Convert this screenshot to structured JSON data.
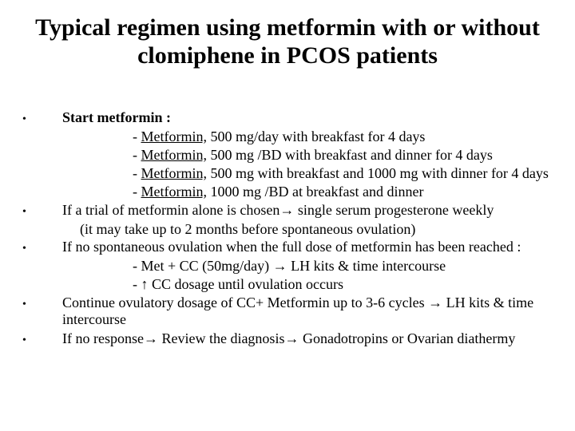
{
  "title": "Typical regimen using metformin with or without clomiphene in PCOS patients",
  "b1": {
    "lead": "Start metformin :",
    "s1_pre": "- ",
    "s1_u": "Metformin,",
    "s1_post": " 500 mg/day with breakfast for 4 days",
    "s2_pre": "- ",
    "s2_u": "Metformin,",
    "s2_post": " 500 mg /BD with breakfast and dinner for 4 days",
    "s3_pre": "- ",
    "s3_u": "Metformin,",
    "s3_post": " 500 mg with breakfast and 1000 mg with dinner for 4 days",
    "s4_pre": "- ",
    "s4_u": "Metformin,",
    "s4_post": " 1000 mg /BD at breakfast and dinner"
  },
  "b2": {
    "line1": "If a trial of metformin alone is chosen→ single serum progesterone weekly",
    "line2": "(it may take up to 2 months before spontaneous ovulation)"
  },
  "b3": {
    "line1": "If no spontaneous ovulation when the full dose of metformin has been reached :",
    "s1": "- Met + CC (50mg/day) → LH kits & time intercourse",
    "s2": "- ↑ CC dosage until ovulation occurs"
  },
  "b4": "Continue ovulatory dosage of CC+ Metformin up to 3-6 cycles → LH kits & time intercourse",
  "b5": " If no response→ Review the diagnosis→ Gonadotropins or Ovarian diathermy",
  "dot": "•"
}
